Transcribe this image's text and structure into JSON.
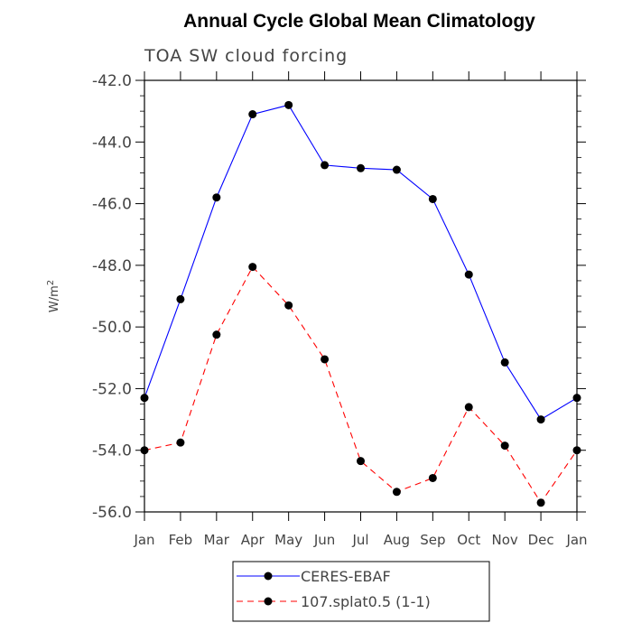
{
  "chart_data": {
    "type": "line",
    "title": "Annual Cycle Global Mean Climatology",
    "subtitle": "TOA SW cloud forcing",
    "ylabel_base": "W/m",
    "ylabel_sup": "2",
    "xlabel": "",
    "categories": [
      "Jan",
      "Feb",
      "Mar",
      "Apr",
      "May",
      "Jun",
      "Jul",
      "Aug",
      "Sep",
      "Oct",
      "Nov",
      "Dec",
      "Jan"
    ],
    "ylim": [
      -56.0,
      -42.0
    ],
    "yticks": [
      "-42.0",
      "-44.0",
      "-46.0",
      "-48.0",
      "-50.0",
      "-52.0",
      "-54.0",
      "-56.0"
    ],
    "grid": false,
    "legend_position": "bottom-center",
    "series": [
      {
        "name": "CERES-EBAF",
        "color": "#0000ff",
        "dash": "solid",
        "values": [
          -52.3,
          -49.1,
          -45.8,
          -43.1,
          -42.8,
          -44.75,
          -44.85,
          -44.9,
          -45.85,
          -48.3,
          -51.15,
          -53.0,
          -52.3
        ]
      },
      {
        "name": "107.splat0.5 (1-1)",
        "color": "#ff0000",
        "dash": "dashed",
        "values": [
          -54.0,
          -53.75,
          -50.25,
          -48.05,
          -49.3,
          -51.05,
          -54.35,
          -55.35,
          -54.9,
          -52.6,
          -53.85,
          -55.7,
          -54.0
        ]
      }
    ]
  }
}
